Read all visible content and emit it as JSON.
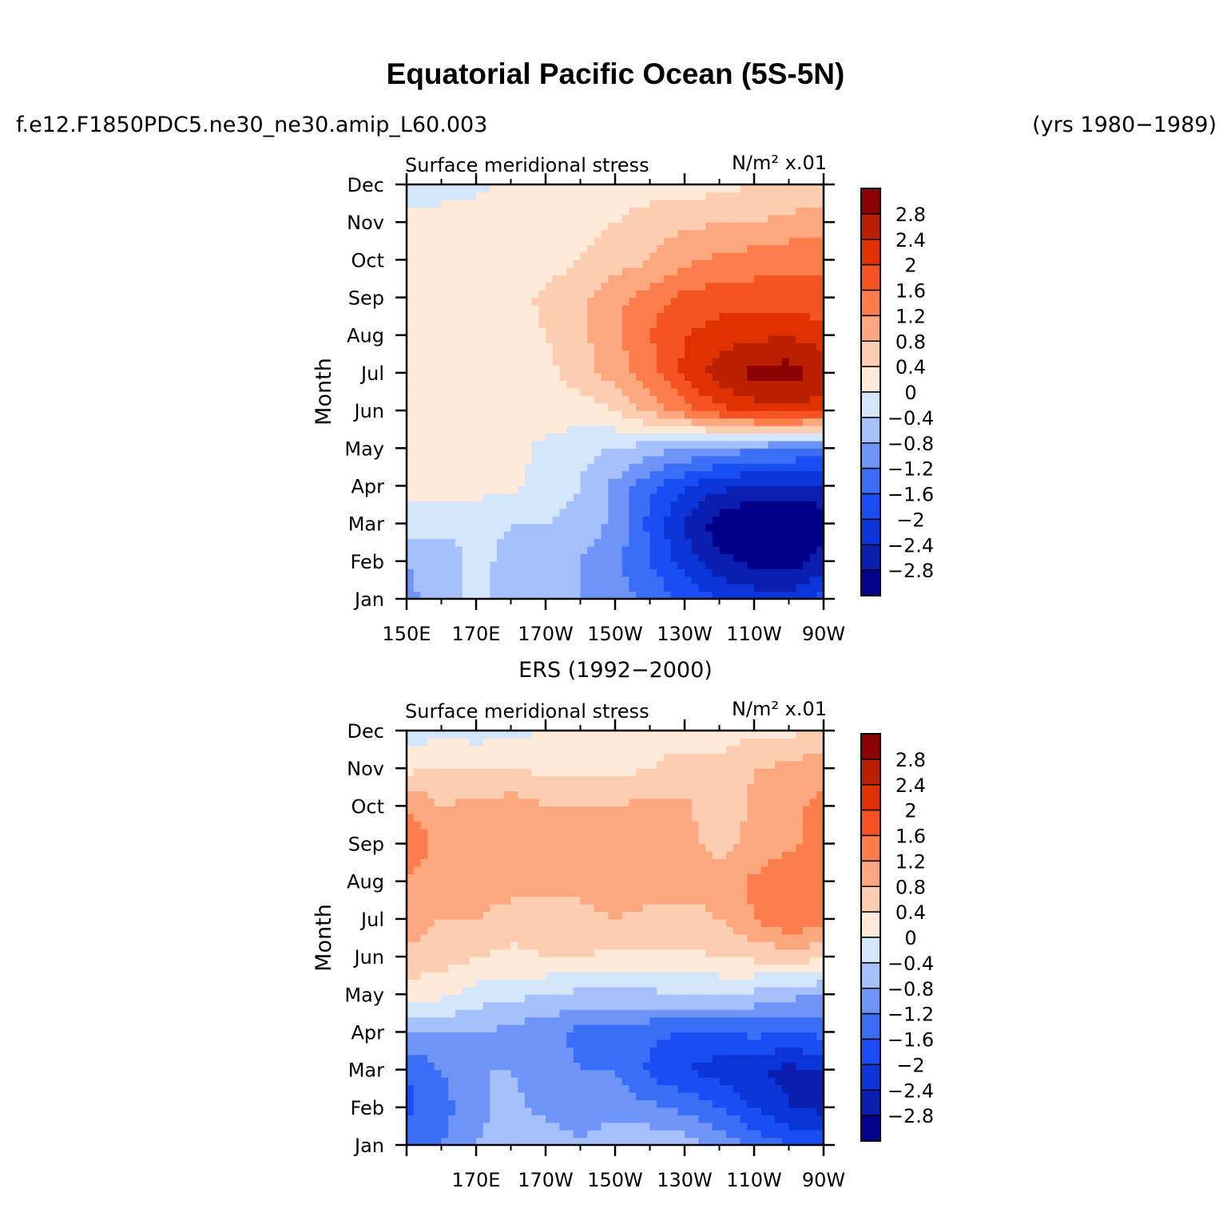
{
  "page": {
    "title": "Equatorial Pacific Ocean (5S-5N)",
    "case_name": "f.e12.F1850PDC5.ne30_ne30.amip_L60.003",
    "years": "(yrs 1980−1989)",
    "obs_title": "ERS (1992−2000)"
  },
  "colors": {
    "levels": [
      -3.2,
      -2.8,
      -2.4,
      -2.0,
      -1.6,
      -1.2,
      -0.8,
      -0.4,
      0,
      0.4,
      0.8,
      1.2,
      1.6,
      2.0,
      2.4,
      2.8
    ],
    "palette": [
      "#00008a",
      "#0a1fb0",
      "#0b35d9",
      "#1a4ef5",
      "#3b6ef6",
      "#6f94f8",
      "#a6c0fb",
      "#d4e6fc",
      "#ffe9d8",
      "#fdcdb1",
      "#fca77e",
      "#fb7d4c",
      "#f55422",
      "#e13100",
      "#bb2000",
      "#8b0000"
    ]
  },
  "chart_data": [
    {
      "type": "heatmap",
      "panel": "model",
      "title_left": "Surface meridional stress",
      "units": "N/m² x.01",
      "ylabel": "Month",
      "xlabel": "",
      "x": [
        150,
        160,
        170,
        180,
        190,
        200,
        210,
        220,
        230,
        240,
        250,
        260,
        270
      ],
      "x_tick_labels": [
        "150E",
        "170E",
        "170W",
        "150W",
        "130W",
        "110W",
        "90W"
      ],
      "x_tick_values": [
        150,
        170,
        190,
        210,
        230,
        250,
        270
      ],
      "y_tick_labels": [
        "Jan",
        "Feb",
        "Mar",
        "Apr",
        "May",
        "Jun",
        "Jul",
        "Aug",
        "Sep",
        "Oct",
        "Nov",
        "Dec"
      ],
      "colorbar_labels": [
        "2.8",
        "2.4",
        "2",
        "1.6",
        "1.2",
        "0.8",
        "0.4",
        "0",
        "−0.4",
        "−0.8",
        "−1.2",
        "−1.6",
        "−2",
        "−2.4",
        "−2.8"
      ],
      "z": [
        [
          -0.9,
          -0.6,
          -0.3,
          -0.6,
          -0.7,
          -0.8,
          -1.0,
          -1.3,
          -1.7,
          -2.0,
          -2.2,
          -2.3,
          -1.8
        ],
        [
          -0.8,
          -0.6,
          -0.3,
          -0.5,
          -0.6,
          -0.8,
          -1.1,
          -1.6,
          -2.2,
          -2.7,
          -2.9,
          -3.0,
          -2.6
        ],
        [
          -0.2,
          -0.3,
          -0.3,
          -0.4,
          -0.4,
          -0.5,
          -0.9,
          -1.7,
          -2.5,
          -3.0,
          -3.4,
          -3.4,
          -3.1
        ],
        [
          0.15,
          0.15,
          0.15,
          0.1,
          -0.2,
          -0.4,
          -0.9,
          -1.5,
          -2.0,
          -2.3,
          -2.5,
          -2.5,
          -2.4
        ],
        [
          0.15,
          0.15,
          0.15,
          0.15,
          -0.1,
          -0.3,
          -0.4,
          -0.6,
          -0.8,
          -1.0,
          -1.1,
          -1.2,
          -1.3
        ],
        [
          0.2,
          0.2,
          0.2,
          0.2,
          0.2,
          0.2,
          0.4,
          0.9,
          1.4,
          1.9,
          2.2,
          2.3,
          2.2
        ],
        [
          0.3,
          0.2,
          0.2,
          0.2,
          0.3,
          0.6,
          1.0,
          1.4,
          2.1,
          2.6,
          2.9,
          3.0,
          2.7
        ],
        [
          0.4,
          0.2,
          0.2,
          0.2,
          0.4,
          0.7,
          1.1,
          1.6,
          2.0,
          2.2,
          2.3,
          2.4,
          2.2
        ],
        [
          0.3,
          0.2,
          0.2,
          0.2,
          0.5,
          0.7,
          1.1,
          1.4,
          1.7,
          1.8,
          1.8,
          1.8,
          1.7
        ],
        [
          0.2,
          0.2,
          0.2,
          0.2,
          0.2,
          0.4,
          0.6,
          0.8,
          1.1,
          1.3,
          1.4,
          1.5,
          1.5
        ],
        [
          0.2,
          0.2,
          0.2,
          0.2,
          0.2,
          0.3,
          0.4,
          0.6,
          0.7,
          0.8,
          0.8,
          0.9,
          1.0
        ],
        [
          -0.3,
          -0.2,
          -0.1,
          0.1,
          0.2,
          0.2,
          0.2,
          0.2,
          0.2,
          0.3,
          0.4,
          0.5,
          0.6
        ]
      ]
    },
    {
      "type": "heatmap",
      "panel": "obs",
      "title_left": "Surface meridional stress",
      "units": "N/m² x.01",
      "ylabel": "Month",
      "xlabel": "",
      "x": [
        150,
        160,
        170,
        180,
        190,
        200,
        210,
        220,
        230,
        240,
        250,
        260,
        270
      ],
      "x_tick_labels": [
        "170E",
        "170W",
        "150W",
        "130W",
        "110W",
        "90W"
      ],
      "x_tick_values": [
        170,
        190,
        210,
        230,
        250,
        270
      ],
      "y_tick_labels": [
        "Jan",
        "Feb",
        "Mar",
        "Apr",
        "May",
        "Jun",
        "Jul",
        "Aug",
        "Sep",
        "Oct",
        "Nov",
        "Dec"
      ],
      "colorbar_labels": [
        "2.8",
        "2.4",
        "2",
        "1.6",
        "1.2",
        "0.8",
        "0.4",
        "0",
        "−0.4",
        "−0.8",
        "−1.2",
        "−1.6",
        "−2",
        "−2.4",
        "−2.8"
      ],
      "z": [
        [
          -1.4,
          -1.2,
          -0.8,
          -0.5,
          -0.6,
          -0.7,
          -0.5,
          -0.5,
          -0.6,
          -0.9,
          -1.3,
          -1.6,
          -1.7
        ],
        [
          -1.7,
          -1.4,
          -0.9,
          -0.7,
          -0.9,
          -1.1,
          -1.0,
          -1.1,
          -1.3,
          -1.6,
          -2.0,
          -2.4,
          -2.5
        ],
        [
          -1.6,
          -1.2,
          -0.8,
          -0.8,
          -1.0,
          -1.2,
          -1.2,
          -1.7,
          -2.0,
          -2.2,
          -2.4,
          -2.5,
          -2.4
        ],
        [
          -0.8,
          -0.8,
          -0.8,
          -0.9,
          -1.1,
          -1.3,
          -1.3,
          -1.5,
          -1.6,
          -1.6,
          -1.5,
          -1.6,
          -1.5
        ],
        [
          0.2,
          0.1,
          -0.2,
          -0.3,
          -0.4,
          -0.5,
          -0.5,
          -0.5,
          -0.4,
          -0.4,
          -0.5,
          -0.7,
          -0.8
        ],
        [
          0.7,
          0.6,
          0.4,
          0.3,
          0.4,
          0.4,
          0.3,
          0.3,
          0.3,
          0.4,
          0.5,
          0.6,
          0.5
        ],
        [
          1.0,
          0.8,
          0.8,
          0.6,
          0.5,
          0.7,
          0.8,
          0.7,
          0.7,
          0.8,
          1.2,
          1.5,
          1.4
        ],
        [
          1.2,
          0.9,
          1.0,
          1.0,
          1.0,
          0.9,
          1.0,
          1.0,
          0.9,
          0.9,
          1.3,
          1.5,
          1.5
        ],
        [
          1.5,
          1.1,
          1.0,
          1.0,
          1.1,
          1.0,
          1.0,
          1.0,
          0.9,
          0.7,
          0.9,
          1.1,
          1.4
        ],
        [
          1.2,
          0.8,
          0.9,
          1.0,
          0.8,
          0.8,
          0.8,
          0.9,
          0.9,
          0.5,
          0.9,
          1.1,
          1.3
        ],
        [
          0.3,
          0.4,
          0.4,
          0.4,
          0.3,
          0.3,
          0.3,
          0.4,
          0.5,
          0.5,
          0.8,
          0.9,
          1.1
        ],
        [
          -0.2,
          -0.1,
          -0.2,
          -0.1,
          0.0,
          0.1,
          0.2,
          0.3,
          0.3,
          0.2,
          0.3,
          0.3,
          0.5
        ]
      ]
    }
  ]
}
